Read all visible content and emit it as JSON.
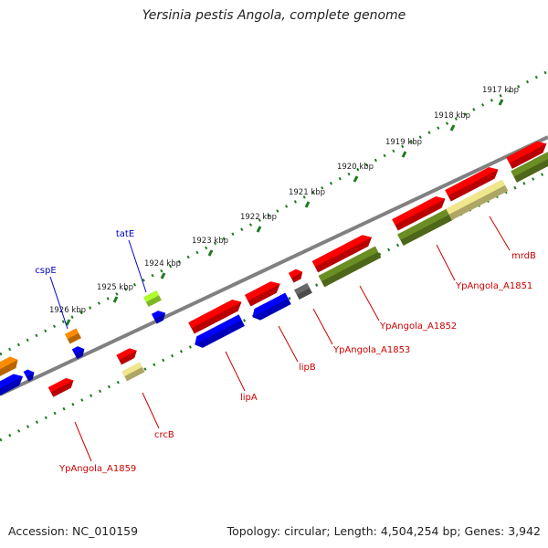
{
  "title": "Yersinia pestis Angola, complete genome",
  "footer": {
    "accession": "Accession: NC_010159",
    "topology": "Topology: circular; Length: 4,504,254 bp; Genes: 3,942"
  },
  "colors": {
    "backbone": "#808080",
    "tick": "#1e7b1e",
    "label_forward": "#0000cc",
    "label_reverse": "#cc0000",
    "gene_red": "#ff0000",
    "gene_blue": "#0000ff",
    "gene_olive": "#6b8e23",
    "gene_khaki": "#f0e68c",
    "gene_orange": "#ff8c00",
    "gene_lime": "#adff2f",
    "gene_gray": "#696969"
  },
  "ticks": [
    {
      "label": "1917 kbp"
    },
    {
      "label": "1918 kbp"
    },
    {
      "label": "1919 kbp"
    },
    {
      "label": "1920 kbp"
    },
    {
      "label": "1921 kbp"
    },
    {
      "label": "1922 kbp"
    },
    {
      "label": "1923 kbp"
    },
    {
      "label": "1924 kbp"
    },
    {
      "label": "1925 kbp"
    },
    {
      "label": "1926 kbp"
    }
  ],
  "gene_labels": [
    {
      "name": "cspE",
      "strand": "forward"
    },
    {
      "name": "tatE",
      "strand": "forward"
    },
    {
      "name": "mrdB",
      "strand": "reverse"
    },
    {
      "name": "YpAngola_A1851",
      "strand": "reverse"
    },
    {
      "name": "YpAngola_A1852",
      "strand": "reverse"
    },
    {
      "name": "YpAngola_A1853",
      "strand": "reverse"
    },
    {
      "name": "lipB",
      "strand": "reverse"
    },
    {
      "name": "lipA",
      "strand": "reverse"
    },
    {
      "name": "crcB",
      "strand": "reverse"
    },
    {
      "name": "YpAngola_A1859",
      "strand": "reverse"
    }
  ]
}
